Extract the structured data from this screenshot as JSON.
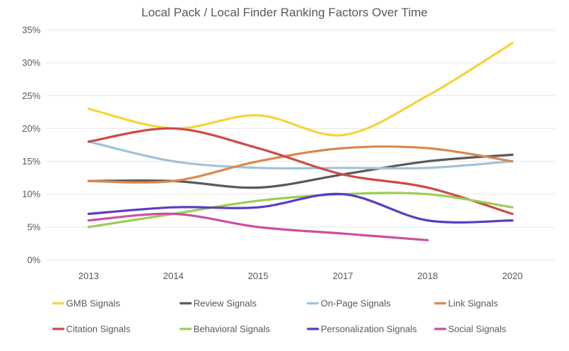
{
  "chart_data": {
    "type": "line",
    "title": "Local Pack / Local Finder Ranking Factors Over Time",
    "categories": [
      "2013",
      "2014",
      "2015",
      "2017",
      "2018",
      "2020"
    ],
    "ylim": [
      0,
      35
    ],
    "yticks": [
      0,
      5,
      10,
      15,
      20,
      25,
      30,
      35
    ],
    "ytick_labels": [
      "0%",
      "5%",
      "10%",
      "15%",
      "20%",
      "25%",
      "30%",
      "35%"
    ],
    "grid": true,
    "smooth": true,
    "legend_position": "bottom",
    "series": [
      {
        "name": "GMB Signals",
        "color": "#f5d33b",
        "values": [
          23,
          20,
          22,
          19,
          25,
          33
        ]
      },
      {
        "name": "Review Signals",
        "color": "#595959",
        "values": [
          12,
          12,
          11,
          13,
          15,
          16
        ]
      },
      {
        "name": "On-Page Signals",
        "color": "#9dc3dc",
        "values": [
          18,
          15,
          14,
          14,
          14,
          15
        ]
      },
      {
        "name": "Link Signals",
        "color": "#d9894e",
        "values": [
          12,
          12,
          15,
          17,
          17,
          15
        ]
      },
      {
        "name": "Citation Signals",
        "color": "#cc4b47",
        "values": [
          18,
          20,
          17,
          13,
          11,
          7
        ]
      },
      {
        "name": "Behavioral Signals",
        "color": "#9ccd55",
        "values": [
          5,
          7,
          9,
          10,
          10,
          8
        ]
      },
      {
        "name": "Personalization Signals",
        "color": "#5b3cc4",
        "values": [
          7,
          8,
          8,
          10,
          6,
          6
        ]
      },
      {
        "name": "Social Signals",
        "color": "#cc4f9e",
        "values": [
          6,
          7,
          5,
          4,
          3,
          null
        ]
      }
    ]
  }
}
